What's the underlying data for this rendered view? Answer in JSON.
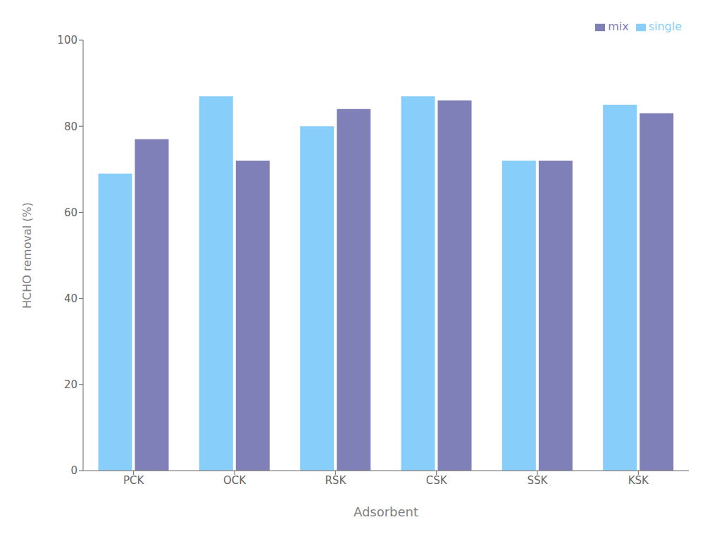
{
  "chart_data": {
    "type": "bar",
    "categories": [
      "PCK",
      "OCK",
      "RSK",
      "CSK",
      "SSK",
      "KSK"
    ],
    "series": [
      {
        "name": "single",
        "color": "#87CEFA",
        "values": [
          69.0,
          87.0,
          80.0,
          87.0,
          72.0,
          85.0
        ]
      },
      {
        "name": "mix",
        "color": "#8080B8",
        "values": [
          77.0,
          72.0,
          84.0,
          86.0,
          72.0,
          83.0
        ]
      }
    ],
    "xlabel": "Adsorbent",
    "ylabel": "HCHO removal (%)",
    "ylim": [
      0,
      100
    ],
    "yticks": [
      0,
      20,
      40,
      60,
      80,
      100
    ],
    "grid": false,
    "legend": "upper right"
  }
}
